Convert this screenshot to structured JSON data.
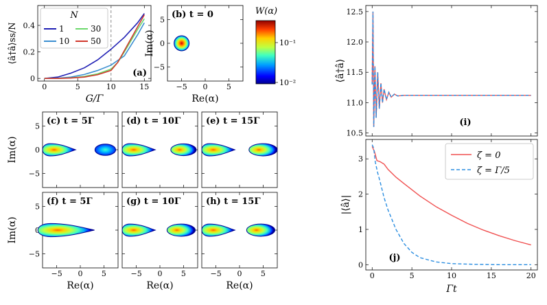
{
  "colors": {
    "n1": "#1f1fb4",
    "n10": "#3b8fd0",
    "n30": "#6ad86a",
    "n50": "#d1362b",
    "zeta0": "#f05050",
    "zeta_g5": "#2a8de0",
    "dashed_ref": "#888888"
  },
  "chart_data": [
    {
      "id": "a",
      "type": "line",
      "label": "(a)",
      "xlabel": "G/Γ",
      "ylabel": "⟨â†â⟩ss/N",
      "xlim": [
        -1,
        16
      ],
      "ylim": [
        -0.02,
        0.55
      ],
      "xticks": [
        0,
        5,
        10,
        15
      ],
      "yticks": [
        0,
        0.2,
        0.4
      ],
      "vline": 10,
      "legend_title": "N",
      "legend_placement": "top-left",
      "series": [
        {
          "name": "1",
          "x": [
            0,
            2,
            4,
            6,
            8,
            10,
            12,
            14,
            15
          ],
          "y": [
            0,
            0.01,
            0.04,
            0.08,
            0.14,
            0.22,
            0.31,
            0.42,
            0.49
          ]
        },
        {
          "name": "10",
          "x": [
            0,
            2,
            4,
            6,
            8,
            10,
            12,
            14,
            15
          ],
          "y": [
            0,
            0.002,
            0.01,
            0.03,
            0.06,
            0.1,
            0.17,
            0.33,
            0.42
          ]
        },
        {
          "name": "30",
          "x": [
            0,
            2,
            4,
            6,
            8,
            10,
            11,
            12,
            14,
            15
          ],
          "y": [
            0,
            0,
            0.004,
            0.015,
            0.035,
            0.07,
            0.12,
            0.2,
            0.37,
            0.45
          ]
        },
        {
          "name": "50",
          "x": [
            0,
            2,
            4,
            6,
            8,
            10,
            11,
            12,
            14,
            15
          ],
          "y": [
            0,
            0,
            0.003,
            0.01,
            0.028,
            0.06,
            0.12,
            0.21,
            0.39,
            0.48
          ]
        }
      ]
    },
    {
      "id": "b",
      "type": "heatmap",
      "label": "(b) t = 0",
      "xlabel": "Re(α)",
      "ylabel": "Im(α)",
      "xlim": [
        -8,
        8
      ],
      "ylim": [
        -8,
        8
      ],
      "xticks": [
        -5,
        0,
        5
      ],
      "yticks": [
        -5,
        0,
        5
      ],
      "blobs": [
        {
          "center": [
            -5,
            0
          ],
          "rx": 1.6,
          "ry": 1.6
        }
      ],
      "colorbar_label": "W(α)",
      "colorbar_ticks": [
        "10⁻¹",
        "10⁻²"
      ]
    },
    {
      "id": "c",
      "type": "heatmap",
      "label": "(c) t = 5Γ",
      "xlim": [
        -8,
        8
      ],
      "ylim": [
        -8,
        8
      ],
      "xticks": [
        -5,
        0,
        5
      ],
      "yticks": [
        -5,
        0,
        5
      ],
      "blobs": [
        {
          "center": [
            -4.5,
            0
          ],
          "rx": 3.5,
          "ry": 1.3,
          "tail": "right"
        },
        {
          "center": [
            5.3,
            0
          ],
          "rx": 2.2,
          "ry": 1.2
        }
      ]
    },
    {
      "id": "d",
      "type": "heatmap",
      "label": "(d) t = 10Γ",
      "xlim": [
        -8,
        8
      ],
      "ylim": [
        -8,
        8
      ],
      "xticks": [
        -5,
        0,
        5
      ],
      "yticks": [
        -5,
        0,
        5
      ],
      "blobs": [
        {
          "center": [
            -4.5,
            0
          ],
          "rx": 3.5,
          "ry": 1.3,
          "tail": "right"
        },
        {
          "center": [
            5,
            0
          ],
          "rx": 2.7,
          "ry": 1.25
        }
      ]
    },
    {
      "id": "e",
      "type": "heatmap",
      "label": "(e) t = 15Γ",
      "xlim": [
        -8,
        8
      ],
      "ylim": [
        -8,
        8
      ],
      "xticks": [
        -5,
        0,
        5
      ],
      "yticks": [
        -5,
        0,
        5
      ],
      "blobs": [
        {
          "center": [
            -4.5,
            0
          ],
          "rx": 3.5,
          "ry": 1.3,
          "tail": "right"
        },
        {
          "center": [
            5,
            0
          ],
          "rx": 3.0,
          "ry": 1.3
        }
      ]
    },
    {
      "id": "f",
      "type": "heatmap",
      "label": "(f) t = 5Γ",
      "xlabel": "Re(α)",
      "xlim": [
        -8,
        8
      ],
      "ylim": [
        -8,
        8
      ],
      "xticks": [
        -5,
        0,
        5
      ],
      "yticks": [
        -5,
        0,
        5
      ],
      "blobs": [
        {
          "center": [
            -3,
            0
          ],
          "rx": 6,
          "ry": 1.4,
          "tail": "right"
        }
      ]
    },
    {
      "id": "g",
      "type": "heatmap",
      "label": "(g) t = 10Γ",
      "xlabel": "Re(α)",
      "xlim": [
        -8,
        8
      ],
      "ylim": [
        -8,
        8
      ],
      "xticks": [
        -5,
        0,
        5
      ],
      "yticks": [
        -5,
        0,
        5
      ],
      "blobs": [
        {
          "center": [
            -4.5,
            0
          ],
          "rx": 3.5,
          "ry": 1.3,
          "tail": "right"
        },
        {
          "center": [
            4.5,
            0
          ],
          "rx": 3.0,
          "ry": 1.3
        }
      ]
    },
    {
      "id": "h",
      "type": "heatmap",
      "label": "(h) t = 15Γ",
      "xlabel": "Re(α)",
      "xlim": [
        -8,
        8
      ],
      "ylim": [
        -8,
        8
      ],
      "xticks": [
        -5,
        0,
        5
      ],
      "yticks": [
        -5,
        0,
        5
      ],
      "blobs": [
        {
          "center": [
            -4.5,
            0
          ],
          "rx": 3.5,
          "ry": 1.3,
          "tail": "right"
        },
        {
          "center": [
            4.5,
            0
          ],
          "rx": 3.0,
          "ry": 1.3
        }
      ]
    },
    {
      "id": "i",
      "type": "line",
      "label": "(i)",
      "ylabel": "⟨â†â⟩",
      "xlim": [
        -0.8,
        20.8
      ],
      "ylim": [
        10.45,
        12.6
      ],
      "yticks": [
        10.5,
        11.0,
        11.5,
        12.0,
        12.5
      ],
      "xticks": [
        0,
        5,
        10,
        15,
        20
      ],
      "equilibrium": 11.12,
      "series": [
        {
          "name": "solid",
          "style": "solid",
          "x": [
            0,
            0.1,
            0.2,
            0.35,
            0.5,
            0.7,
            0.9,
            1.1,
            1.3,
            1.5,
            1.8,
            2.1,
            2.4,
            2.8,
            3.2,
            4,
            6,
            10,
            15,
            20
          ],
          "y": [
            11.3,
            12.5,
            10.6,
            11.6,
            10.75,
            11.5,
            10.9,
            11.32,
            11.0,
            11.22,
            11.05,
            11.17,
            11.09,
            11.14,
            11.11,
            11.12,
            11.12,
            11.12,
            11.12,
            11.12
          ]
        },
        {
          "name": "dashed",
          "style": "dashed",
          "x": [
            0,
            0.1,
            0.2,
            0.35,
            0.5,
            0.7,
            0.9,
            1.1,
            1.3,
            1.5,
            1.8,
            2.1,
            2.4,
            2.8,
            3.2,
            4,
            6,
            10,
            15,
            20
          ],
          "y": [
            11.3,
            12.5,
            10.6,
            11.6,
            10.75,
            11.5,
            10.9,
            11.32,
            11.0,
            11.22,
            11.05,
            11.17,
            11.09,
            11.14,
            11.11,
            11.12,
            11.12,
            11.12,
            11.12,
            11.12
          ]
        }
      ]
    },
    {
      "id": "j",
      "type": "line",
      "label": "(j)",
      "xlabel": "Γt",
      "ylabel": "|⟨â⟩|",
      "xlim": [
        -0.8,
        20.8
      ],
      "ylim": [
        -0.15,
        3.55
      ],
      "xticks": [
        0,
        5,
        10,
        15,
        20
      ],
      "yticks": [
        0,
        1,
        2,
        3
      ],
      "legend_placement": "top-right",
      "series": [
        {
          "name": "ζ = 0",
          "style": "solid",
          "x": [
            0,
            0.3,
            0.6,
            1,
            1.5,
            2,
            3,
            4,
            6,
            8,
            10,
            12,
            14,
            16,
            18,
            20
          ],
          "y": [
            3.35,
            3.2,
            2.95,
            2.92,
            2.85,
            2.7,
            2.48,
            2.3,
            1.95,
            1.65,
            1.4,
            1.17,
            0.98,
            0.82,
            0.68,
            0.56
          ]
        },
        {
          "name": "ζ = Γ/5",
          "style": "dashed",
          "x": [
            0,
            0.2,
            0.4,
            0.7,
            1,
            1.5,
            2,
            3,
            4,
            5,
            6,
            8,
            10,
            13,
            16,
            20
          ],
          "y": [
            3.4,
            3.3,
            2.9,
            2.6,
            2.35,
            1.9,
            1.55,
            1.0,
            0.6,
            0.35,
            0.2,
            0.08,
            0.03,
            0.01,
            0.0,
            0.0
          ]
        }
      ]
    }
  ]
}
